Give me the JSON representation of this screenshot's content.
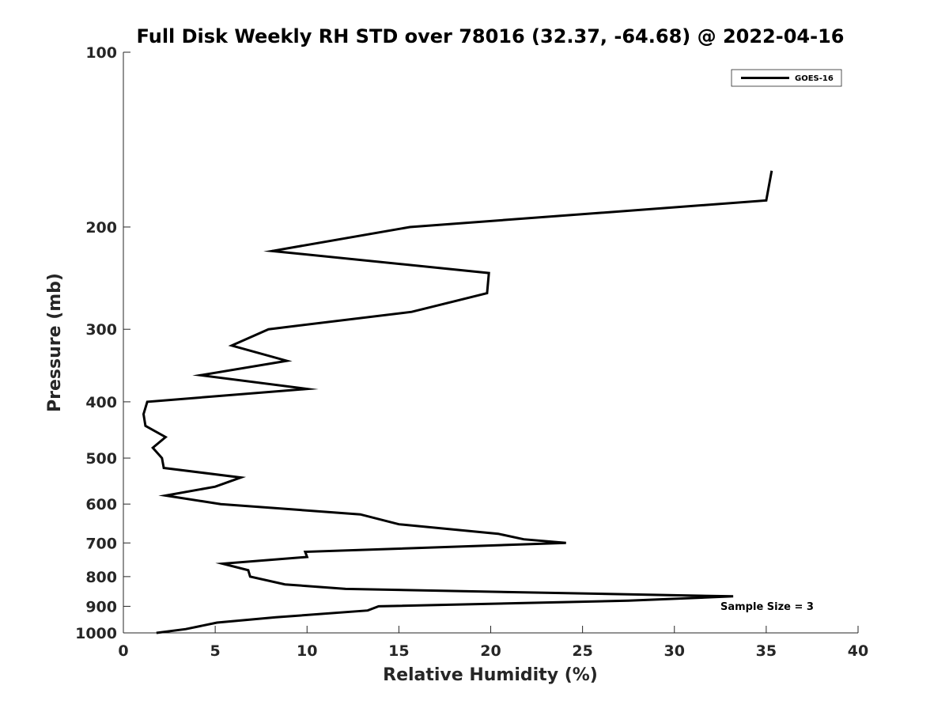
{
  "chart_data": {
    "type": "line",
    "title": "Full Disk Weekly RH STD over 78016 (32.37, -64.68) @ 2022-04-16",
    "xlabel": "Relative Humidity (%)",
    "ylabel": "Pressure (mb)",
    "xlim": [
      0,
      40
    ],
    "ylim": [
      100,
      1000
    ],
    "y_scale": "log",
    "y_direction": "reversed",
    "x_ticks": [
      0,
      5,
      10,
      15,
      20,
      25,
      30,
      35,
      40
    ],
    "y_ticks": [
      100,
      200,
      300,
      400,
      500,
      600,
      700,
      800,
      900,
      1000
    ],
    "grid": false,
    "legend_position": "top-right",
    "annotation": "Sample Size = 3",
    "series": [
      {
        "name": "GOES-16",
        "color": "#000000",
        "points": [
          [
            35.3,
            160
          ],
          [
            35.0,
            180
          ],
          [
            15.6,
            200
          ],
          [
            8.1,
            220
          ],
          [
            19.9,
            240
          ],
          [
            19.8,
            260
          ],
          [
            15.7,
            280
          ],
          [
            7.9,
            300
          ],
          [
            5.9,
            320
          ],
          [
            8.9,
            340
          ],
          [
            4.2,
            360
          ],
          [
            10.0,
            380
          ],
          [
            1.3,
            400
          ],
          [
            1.1,
            420
          ],
          [
            1.2,
            440
          ],
          [
            2.3,
            460
          ],
          [
            1.6,
            480
          ],
          [
            2.1,
            500
          ],
          [
            2.2,
            520
          ],
          [
            6.4,
            540
          ],
          [
            5.0,
            560
          ],
          [
            2.3,
            580
          ],
          [
            5.3,
            600
          ],
          [
            12.9,
            625
          ],
          [
            15.0,
            650
          ],
          [
            20.4,
            675
          ],
          [
            21.8,
            690
          ],
          [
            24.1,
            700
          ],
          [
            9.9,
            725
          ],
          [
            10.0,
            740
          ],
          [
            5.4,
            760
          ],
          [
            6.8,
            780
          ],
          [
            6.9,
            800
          ],
          [
            8.8,
            825
          ],
          [
            12.1,
            840
          ],
          [
            33.2,
            865
          ],
          [
            27.5,
            880
          ],
          [
            13.9,
            900
          ],
          [
            13.3,
            915
          ],
          [
            8.3,
            940
          ],
          [
            5.1,
            960
          ],
          [
            3.4,
            985
          ],
          [
            1.8,
            1000
          ]
        ]
      }
    ]
  }
}
